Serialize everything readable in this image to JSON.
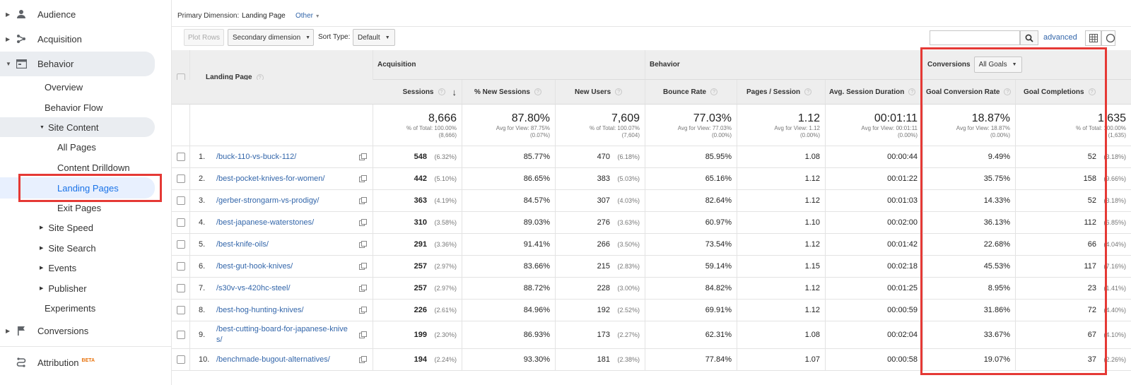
{
  "sidebar": {
    "items": [
      {
        "label": "Audience",
        "icon": "person-icon"
      },
      {
        "label": "Acquisition",
        "icon": "acquisition-icon"
      },
      {
        "label": "Behavior",
        "icon": "behavior-icon"
      }
    ],
    "behavior_children": [
      "Overview",
      "Behavior Flow"
    ],
    "site_content": "Site Content",
    "site_content_children": [
      "All Pages",
      "Content Drilldown",
      "Landing Pages",
      "Exit Pages"
    ],
    "behavior_more": [
      "Site Speed",
      "Site Search",
      "Events",
      "Publisher"
    ],
    "experiments": "Experiments",
    "conversions": "Conversions",
    "attribution": "Attribution",
    "attribution_badge": "BETA"
  },
  "controls": {
    "primary_dimension_label": "Primary Dimension:",
    "primary_dimension_value": "Landing Page",
    "other": "Other",
    "plot_rows": "Plot Rows",
    "secondary_dimension": "Secondary dimension",
    "sort_type_label": "Sort Type:",
    "sort_type_value": "Default",
    "search_placeholder": "",
    "advanced": "advanced"
  },
  "table": {
    "group_headers": {
      "acquisition": "Acquisition",
      "behavior": "Behavior",
      "conversions": "Conversions",
      "goal_select": "All Goals"
    },
    "columns": {
      "landing_page": "Landing Page",
      "sessions": "Sessions",
      "new_sessions": "% New Sessions",
      "new_users": "New Users",
      "bounce_rate": "Bounce Rate",
      "pages_session": "Pages / Session",
      "avg_duration": "Avg. Session Duration",
      "goal_conv_rate": "Goal Conversion Rate",
      "goal_completions": "Goal Completions"
    },
    "totals": {
      "sessions": {
        "value": "8,666",
        "l1": "% of Total: 100.00%",
        "l2": "(8,666)"
      },
      "new_sessions": {
        "value": "87.80%",
        "l1": "Avg for View: 87.75%",
        "l2": "(0.07%)"
      },
      "new_users": {
        "value": "7,609",
        "l1": "% of Total: 100.07%",
        "l2": "(7,604)"
      },
      "bounce_rate": {
        "value": "77.03%",
        "l1": "Avg for View: 77.03%",
        "l2": "(0.00%)"
      },
      "pages_session": {
        "value": "1.12",
        "l1": "Avg for View: 1.12",
        "l2": "(0.00%)"
      },
      "avg_duration": {
        "value": "00:01:11",
        "l1": "Avg for View: 00:01:11",
        "l2": "(0.00%)"
      },
      "goal_conv_rate": {
        "value": "18.87%",
        "l1": "Avg for View: 18.87%",
        "l2": "(0.00%)"
      },
      "goal_completions": {
        "value": "1,635",
        "l1": "% of Total: 100.00%",
        "l2": "(1,635)"
      }
    },
    "rows": [
      {
        "n": "1.",
        "page": "/buck-110-vs-buck-112/",
        "page2": "",
        "sessions": "548",
        "sessions_pct": "(6.32%)",
        "new_sessions": "85.77%",
        "new_users": "470",
        "new_users_pct": "(6.18%)",
        "bounce": "85.95%",
        "pages": "1.08",
        "duration": "00:00:44",
        "conv_rate": "9.49%",
        "completions": "52",
        "completions_pct": "(3.18%)"
      },
      {
        "n": "2.",
        "page": "/best-pocket-knives-for-women/",
        "page2": "",
        "sessions": "442",
        "sessions_pct": "(5.10%)",
        "new_sessions": "86.65%",
        "new_users": "383",
        "new_users_pct": "(5.03%)",
        "bounce": "65.16%",
        "pages": "1.12",
        "duration": "00:01:22",
        "conv_rate": "35.75%",
        "completions": "158",
        "completions_pct": "(9.66%)"
      },
      {
        "n": "3.",
        "page": "/gerber-strongarm-vs-prodigy/",
        "page2": "",
        "sessions": "363",
        "sessions_pct": "(4.19%)",
        "new_sessions": "84.57%",
        "new_users": "307",
        "new_users_pct": "(4.03%)",
        "bounce": "82.64%",
        "pages": "1.12",
        "duration": "00:01:03",
        "conv_rate": "14.33%",
        "completions": "52",
        "completions_pct": "(3.18%)"
      },
      {
        "n": "4.",
        "page": "/best-japanese-waterstones/",
        "page2": "",
        "sessions": "310",
        "sessions_pct": "(3.58%)",
        "new_sessions": "89.03%",
        "new_users": "276",
        "new_users_pct": "(3.63%)",
        "bounce": "60.97%",
        "pages": "1.10",
        "duration": "00:02:00",
        "conv_rate": "36.13%",
        "completions": "112",
        "completions_pct": "(6.85%)"
      },
      {
        "n": "5.",
        "page": "/best-knife-oils/",
        "page2": "",
        "sessions": "291",
        "sessions_pct": "(3.36%)",
        "new_sessions": "91.41%",
        "new_users": "266",
        "new_users_pct": "(3.50%)",
        "bounce": "73.54%",
        "pages": "1.12",
        "duration": "00:01:42",
        "conv_rate": "22.68%",
        "completions": "66",
        "completions_pct": "(4.04%)"
      },
      {
        "n": "6.",
        "page": "/best-gut-hook-knives/",
        "page2": "",
        "sessions": "257",
        "sessions_pct": "(2.97%)",
        "new_sessions": "83.66%",
        "new_users": "215",
        "new_users_pct": "(2.83%)",
        "bounce": "59.14%",
        "pages": "1.15",
        "duration": "00:02:18",
        "conv_rate": "45.53%",
        "completions": "117",
        "completions_pct": "(7.16%)"
      },
      {
        "n": "7.",
        "page": "/s30v-vs-420hc-steel/",
        "page2": "",
        "sessions": "257",
        "sessions_pct": "(2.97%)",
        "new_sessions": "88.72%",
        "new_users": "228",
        "new_users_pct": "(3.00%)",
        "bounce": "84.82%",
        "pages": "1.12",
        "duration": "00:01:25",
        "conv_rate": "8.95%",
        "completions": "23",
        "completions_pct": "(1.41%)"
      },
      {
        "n": "8.",
        "page": "/best-hog-hunting-knives/",
        "page2": "",
        "sessions": "226",
        "sessions_pct": "(2.61%)",
        "new_sessions": "84.96%",
        "new_users": "192",
        "new_users_pct": "(2.52%)",
        "bounce": "69.91%",
        "pages": "1.12",
        "duration": "00:00:59",
        "conv_rate": "31.86%",
        "completions": "72",
        "completions_pct": "(4.40%)"
      },
      {
        "n": "9.",
        "page": "/best-cutting-board-for-japanese-knive",
        "page2": "s/",
        "sessions": "199",
        "sessions_pct": "(2.30%)",
        "new_sessions": "86.93%",
        "new_users": "173",
        "new_users_pct": "(2.27%)",
        "bounce": "62.31%",
        "pages": "1.08",
        "duration": "00:02:04",
        "conv_rate": "33.67%",
        "completions": "67",
        "completions_pct": "(4.10%)"
      },
      {
        "n": "10.",
        "page": "/benchmade-bugout-alternatives/",
        "page2": "",
        "sessions": "194",
        "sessions_pct": "(2.24%)",
        "new_sessions": "93.30%",
        "new_users": "181",
        "new_users_pct": "(2.38%)",
        "bounce": "77.84%",
        "pages": "1.07",
        "duration": "00:00:58",
        "conv_rate": "19.07%",
        "completions": "37",
        "completions_pct": "(2.26%)"
      }
    ]
  }
}
